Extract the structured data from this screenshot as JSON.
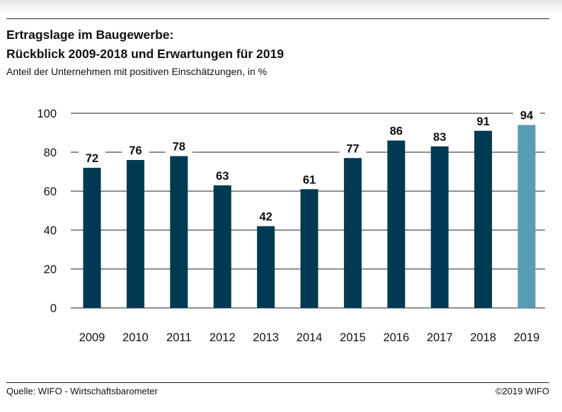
{
  "header": {
    "title_line1": "Ertragslage im Baugewerbe:",
    "title_line2": "Rückblick 2009-2018 und Erwartungen für 2019",
    "subtitle": "Anteil der Unternehmen mit positiven Einschätzungen, in %"
  },
  "footer": {
    "source": "Quelle: WIFO - Wirtschaftsbarometer",
    "copyright": "©2019 WIFO"
  },
  "chart_data": {
    "type": "bar",
    "categories": [
      "2009",
      "2010",
      "2011",
      "2012",
      "2013",
      "2014",
      "2015",
      "2016",
      "2017",
      "2018",
      "2019"
    ],
    "values": [
      72,
      76,
      78,
      63,
      42,
      61,
      77,
      86,
      83,
      91,
      94
    ],
    "data_labels": [
      "72",
      "76",
      "78",
      "63",
      "42",
      "61",
      "77",
      "86",
      "83",
      "91",
      "94"
    ],
    "highlight_index": 10,
    "ylim": [
      0,
      100
    ],
    "yticks": [
      0,
      20,
      40,
      60,
      80,
      100
    ],
    "ytick_labels": [
      "0",
      "20",
      "40",
      "60",
      "80",
      "100"
    ],
    "grid": true,
    "legend": "none",
    "colors": {
      "bar": "#003a52",
      "highlight": "#5a9bb5",
      "grid": "#222222",
      "text": "#111111"
    }
  }
}
